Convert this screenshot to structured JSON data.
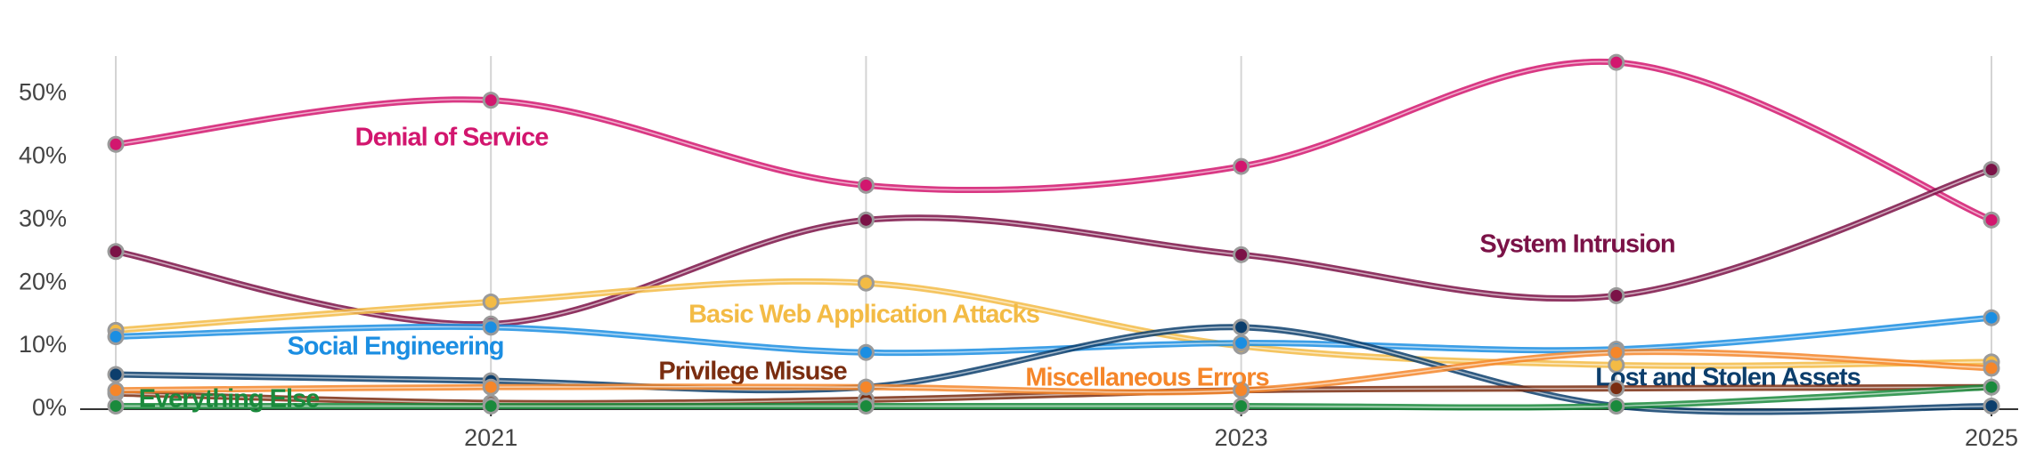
{
  "chart_data": {
    "type": "line",
    "x": [
      2020,
      2021,
      2022,
      2023,
      2024,
      2025
    ],
    "xlim": [
      2020,
      2025
    ],
    "xticks": [
      2021,
      2023,
      2025
    ],
    "ylim": [
      0,
      56
    ],
    "yticks": [
      {
        "value": 0,
        "label": "0%"
      },
      {
        "value": 10,
        "label": "10%"
      },
      {
        "value": 20,
        "label": "20%"
      },
      {
        "value": 30,
        "label": "30%"
      },
      {
        "value": 40,
        "label": "40%"
      },
      {
        "value": 50,
        "label": "50%"
      }
    ],
    "grid": true,
    "series": [
      {
        "name": "Denial of Service",
        "color": "#d2166e",
        "values": [
          42,
          49,
          35.5,
          38.5,
          55,
          30
        ]
      },
      {
        "name": "System Intrusion",
        "color": "#7b1247",
        "values": [
          25,
          13.5,
          30,
          24.5,
          18,
          38
        ]
      },
      {
        "name": "Basic Web Application Attacks",
        "color": "#f3bb45",
        "values": [
          12.5,
          17,
          20,
          10,
          7,
          7.5
        ]
      },
      {
        "name": "Social Engineering",
        "color": "#1b8ee2",
        "values": [
          11.5,
          13,
          9,
          10.5,
          9.5,
          14.5
        ]
      },
      {
        "name": "Lost and Stolen Assets",
        "color": "#0c3e6c",
        "values": [
          5.5,
          4.5,
          3.5,
          13,
          0.5,
          0.5
        ]
      },
      {
        "name": "Privilege Misuse",
        "color": "#7a2d10",
        "values": [
          2.5,
          1,
          1.5,
          3,
          3.3,
          3.5
        ]
      },
      {
        "name": "Miscellaneous Errors",
        "color": "#f5862a",
        "values": [
          3,
          3.5,
          3.5,
          3,
          9,
          6.5
        ]
      },
      {
        "name": "Everything Else",
        "color": "#1a8a3c",
        "values": [
          0.5,
          0.5,
          0.5,
          0.5,
          0.5,
          3.5
        ]
      }
    ]
  }
}
